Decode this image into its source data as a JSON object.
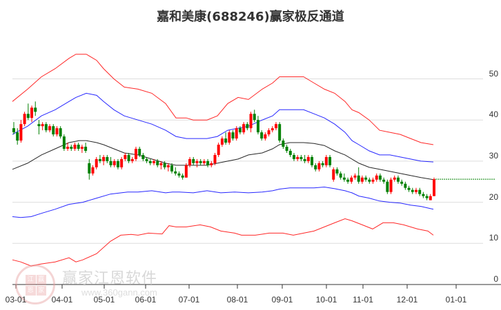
{
  "title": "嘉和美康(688246)赢家极反通道",
  "watermark": {
    "brand": "赢家江恩软件",
    "url": "www.360gann.com",
    "logo_chars": [
      "江",
      "赢",
      "恩",
      "家"
    ]
  },
  "colors": {
    "up": "#ff0000",
    "down": "#008000",
    "outer_band": "#ff0000",
    "inner_band": "#0000ff",
    "middle_line": "#000000",
    "last_price_line": "#008000",
    "grid": "#dddddd"
  },
  "y_axis": {
    "ticks": [
      "0",
      "10",
      "20",
      "30",
      "40",
      "50"
    ],
    "values": [
      0,
      10,
      20,
      30,
      40,
      50
    ]
  },
  "x_axis": {
    "ticks": [
      "03-01",
      "04-01",
      "05-01",
      "06-01",
      "07-01",
      "08-01",
      "09-01",
      "10-01",
      "11-01",
      "12-01",
      "01-01"
    ],
    "positions": [
      23,
      90,
      151,
      211,
      274,
      344,
      409,
      473,
      526,
      590,
      661
    ]
  },
  "chart_data": {
    "type": "candlestick",
    "title": "嘉和美康(688246)赢家极反通道",
    "xlabel": "",
    "ylabel": "",
    "ylim": [
      0,
      55
    ],
    "grid": true,
    "legend": null,
    "x_tick_labels": [
      "03-01",
      "04-01",
      "05-01",
      "06-01",
      "07-01",
      "08-01",
      "09-01",
      "10-01",
      "11-01",
      "12-01",
      "01-01"
    ],
    "y_tick_labels": [
      "0",
      "10",
      "20",
      "30",
      "40",
      "50"
    ],
    "last_price": 25.6,
    "candles_x_range": [
      20,
      629
    ],
    "candles": [
      [
        38.0,
        39.5,
        36.5,
        37.0
      ],
      [
        37.0,
        38.0,
        34.0,
        35.0
      ],
      [
        35.0,
        40.0,
        34.5,
        39.0
      ],
      [
        39.0,
        42.0,
        38.5,
        41.5
      ],
      [
        41.5,
        44.0,
        40.0,
        40.5
      ],
      [
        40.5,
        43.5,
        39.5,
        43.0
      ],
      [
        43.0,
        44.5,
        41.0,
        42.0
      ],
      [
        39.0,
        40.0,
        36.5,
        38.5
      ],
      [
        38.5,
        39.5,
        37.5,
        39.0
      ],
      [
        39.0,
        39.5,
        37.0,
        37.5
      ],
      [
        37.5,
        39.0,
        37.0,
        38.5
      ],
      [
        38.5,
        39.0,
        36.0,
        36.5
      ],
      [
        36.5,
        38.5,
        36.0,
        38.0
      ],
      [
        38.0,
        38.5,
        35.5,
        36.0
      ],
      [
        36.0,
        36.5,
        32.5,
        33.0
      ],
      [
        33.0,
        34.5,
        32.5,
        33.5
      ],
      [
        33.5,
        34.0,
        32.5,
        33.0
      ],
      [
        33.0,
        34.5,
        32.5,
        34.0
      ],
      [
        34.0,
        34.5,
        32.5,
        33.0
      ],
      [
        33.0,
        34.0,
        32.0,
        33.5
      ],
      [
        33.5,
        34.5,
        32.0,
        32.5
      ],
      [
        29.5,
        30.5,
        25.5,
        27.0
      ],
      [
        27.0,
        29.0,
        26.5,
        28.5
      ],
      [
        28.5,
        31.0,
        28.0,
        30.5
      ],
      [
        30.5,
        31.5,
        29.5,
        30.0
      ],
      [
        30.0,
        31.5,
        29.0,
        31.0
      ],
      [
        31.0,
        31.5,
        29.5,
        30.0
      ],
      [
        30.0,
        31.0,
        28.5,
        29.0
      ],
      [
        29.0,
        30.5,
        28.5,
        30.0
      ],
      [
        30.0,
        30.5,
        28.0,
        28.5
      ],
      [
        28.5,
        31.0,
        28.0,
        30.5
      ],
      [
        30.5,
        32.0,
        30.0,
        31.5
      ],
      [
        31.5,
        32.0,
        29.5,
        30.0
      ],
      [
        30.0,
        31.0,
        29.5,
        30.5
      ],
      [
        30.5,
        33.5,
        30.0,
        33.0
      ],
      [
        33.0,
        33.5,
        31.0,
        31.5
      ],
      [
        31.5,
        32.0,
        30.0,
        30.5
      ],
      [
        30.5,
        31.0,
        29.5,
        30.0
      ],
      [
        30.0,
        30.5,
        29.0,
        29.5
      ],
      [
        29.5,
        30.5,
        29.0,
        30.0
      ],
      [
        30.0,
        30.5,
        28.5,
        29.0
      ],
      [
        29.0,
        30.0,
        28.0,
        29.5
      ],
      [
        29.5,
        30.0,
        28.0,
        28.5
      ],
      [
        28.5,
        29.5,
        27.5,
        29.0
      ],
      [
        29.0,
        29.5,
        27.0,
        27.5
      ],
      [
        27.5,
        28.5,
        26.5,
        27.0
      ],
      [
        27.0,
        27.5,
        26.0,
        26.5
      ],
      [
        26.5,
        27.0,
        25.5,
        26.0
      ],
      [
        26.0,
        29.5,
        26.0,
        29.0
      ],
      [
        29.0,
        31.0,
        28.5,
        30.5
      ],
      [
        30.5,
        31.0,
        29.0,
        29.5
      ],
      [
        29.5,
        30.5,
        28.5,
        30.0
      ],
      [
        30.0,
        30.5,
        29.0,
        29.5
      ],
      [
        29.5,
        30.5,
        29.0,
        30.0
      ],
      [
        30.0,
        30.5,
        28.5,
        29.0
      ],
      [
        29.0,
        30.0,
        28.5,
        29.5
      ],
      [
        29.5,
        32.0,
        29.0,
        31.5
      ],
      [
        31.5,
        34.5,
        31.0,
        34.0
      ],
      [
        34.0,
        36.0,
        33.5,
        35.5
      ],
      [
        35.5,
        37.0,
        34.0,
        34.5
      ],
      [
        34.5,
        37.5,
        34.0,
        37.0
      ],
      [
        37.0,
        37.5,
        35.0,
        35.5
      ],
      [
        35.5,
        38.5,
        35.0,
        38.0
      ],
      [
        38.0,
        38.5,
        36.5,
        37.0
      ],
      [
        37.0,
        39.5,
        36.5,
        39.0
      ],
      [
        39.0,
        39.5,
        37.5,
        38.0
      ],
      [
        38.0,
        42.0,
        37.0,
        41.5
      ],
      [
        41.5,
        42.5,
        39.5,
        40.0
      ],
      [
        40.0,
        41.0,
        36.5,
        37.0
      ],
      [
        37.0,
        37.5,
        35.0,
        35.5
      ],
      [
        35.5,
        37.0,
        35.0,
        36.5
      ],
      [
        36.5,
        38.0,
        36.0,
        37.5
      ],
      [
        37.5,
        38.5,
        37.0,
        38.0
      ],
      [
        38.0,
        39.5,
        37.5,
        39.0
      ],
      [
        39.0,
        39.5,
        34.5,
        35.0
      ],
      [
        35.0,
        35.5,
        33.0,
        33.5
      ],
      [
        33.5,
        34.0,
        32.0,
        32.5
      ],
      [
        32.5,
        33.0,
        31.0,
        31.5
      ],
      [
        31.5,
        32.0,
        30.0,
        30.5
      ],
      [
        30.5,
        31.5,
        30.0,
        31.0
      ],
      [
        31.0,
        31.5,
        30.0,
        30.5
      ],
      [
        30.5,
        31.5,
        29.5,
        30.0
      ],
      [
        30.0,
        31.5,
        29.5,
        31.0
      ],
      [
        31.0,
        31.5,
        28.5,
        29.0
      ],
      [
        29.0,
        29.5,
        27.5,
        28.0
      ],
      [
        28.0,
        30.0,
        27.5,
        29.5
      ],
      [
        29.5,
        30.0,
        28.5,
        29.0
      ],
      [
        29.0,
        31.5,
        28.5,
        31.0
      ],
      [
        31.0,
        31.5,
        28.5,
        29.0
      ],
      [
        25.5,
        28.5,
        25.0,
        28.0
      ],
      [
        28.0,
        28.5,
        26.5,
        27.0
      ],
      [
        27.0,
        27.5,
        25.5,
        26.0
      ],
      [
        26.0,
        27.0,
        25.0,
        25.5
      ],
      [
        25.5,
        26.0,
        24.5,
        25.0
      ],
      [
        25.0,
        26.5,
        24.5,
        26.0
      ],
      [
        26.0,
        27.0,
        25.5,
        26.5
      ],
      [
        26.5,
        28.5,
        24.5,
        25.0
      ],
      [
        25.0,
        26.5,
        24.5,
        26.0
      ],
      [
        26.0,
        26.5,
        25.0,
        25.5
      ],
      [
        25.5,
        26.0,
        24.5,
        25.0
      ],
      [
        25.0,
        26.0,
        24.5,
        25.5
      ],
      [
        25.5,
        27.0,
        25.0,
        26.5
      ],
      [
        26.5,
        27.0,
        25.0,
        25.5
      ],
      [
        25.5,
        26.0,
        24.5,
        25.0
      ],
      [
        25.0,
        25.5,
        22.0,
        22.5
      ],
      [
        22.5,
        26.0,
        22.0,
        25.5
      ],
      [
        25.5,
        26.5,
        25.0,
        26.0
      ],
      [
        26.0,
        26.5,
        24.5,
        25.0
      ],
      [
        25.0,
        25.5,
        24.0,
        24.5
      ],
      [
        24.5,
        25.0,
        23.0,
        23.5
      ],
      [
        23.5,
        24.0,
        22.5,
        23.0
      ],
      [
        23.0,
        23.5,
        22.0,
        22.5
      ],
      [
        22.5,
        23.5,
        22.0,
        23.0
      ],
      [
        23.0,
        23.5,
        21.5,
        22.0
      ],
      [
        22.0,
        22.5,
        21.0,
        21.5
      ],
      [
        21.5,
        22.0,
        20.5,
        21.0
      ],
      [
        20.5,
        22.0,
        20.5,
        21.5
      ],
      [
        21.5,
        26.0,
        21.5,
        25.6
      ]
    ],
    "series": [
      {
        "name": "upper_outer",
        "color": "#ff0000",
        "x": [
          18,
          40,
          60,
          80,
          100,
          110,
          125,
          140,
          150,
          165,
          180,
          200,
          220,
          240,
          255,
          270,
          280,
          300,
          315,
          330,
          345,
          360,
          380,
          395,
          405,
          420,
          440,
          455,
          470,
          485,
          500,
          510,
          520,
          535,
          550,
          565,
          580,
          595,
          610,
          628
        ],
        "values": [
          44.5,
          47.5,
          50.5,
          52.5,
          55,
          56,
          56,
          54.5,
          52.5,
          50,
          48,
          47.5,
          46.5,
          44,
          40.5,
          40.5,
          40,
          40,
          41,
          44,
          45.5,
          45,
          47.5,
          49,
          50.5,
          50.5,
          50.5,
          49,
          47.5,
          46.5,
          44.5,
          42.5,
          41.8,
          40,
          37.5,
          37,
          36.5,
          35.5,
          34.5,
          34
        ]
      },
      {
        "name": "upper_inner",
        "color": "#0000ff",
        "x": [
          18,
          40,
          60,
          80,
          100,
          110,
          125,
          140,
          150,
          165,
          180,
          200,
          220,
          240,
          255,
          270,
          280,
          300,
          315,
          330,
          345,
          360,
          380,
          395,
          405,
          420,
          440,
          455,
          470,
          485,
          500,
          510,
          520,
          535,
          550,
          565,
          580,
          595,
          610,
          628
        ],
        "values": [
          36.5,
          38.5,
          41,
          42.5,
          44.5,
          45.5,
          46.5,
          46,
          44.5,
          42.5,
          41,
          40,
          39,
          37.5,
          36,
          35.5,
          35.5,
          35.5,
          36,
          37.5,
          38,
          38.5,
          40,
          41,
          42.5,
          42.5,
          42.5,
          41.5,
          40.5,
          39,
          37,
          35,
          34,
          32.5,
          31.5,
          31.5,
          31,
          30.5,
          30,
          29.8
        ]
      },
      {
        "name": "middle",
        "color": "#000000",
        "x": [
          18,
          40,
          60,
          80,
          100,
          115,
          125,
          140,
          150,
          165,
          180,
          200,
          220,
          240,
          255,
          270,
          280,
          300,
          315,
          330,
          345,
          360,
          380,
          395,
          405,
          420,
          440,
          455,
          470,
          485,
          500,
          510,
          520,
          535,
          550,
          565,
          580,
          595,
          610,
          628
        ],
        "values": [
          28,
          29.5,
          31.5,
          33,
          34.5,
          35,
          35,
          34.5,
          34,
          33,
          32,
          31.5,
          30.5,
          29.5,
          29,
          29,
          29,
          29,
          29.5,
          30,
          30.5,
          31.5,
          32,
          33,
          34,
          34.5,
          34.5,
          34.3,
          33.8,
          32.5,
          31.5,
          30.5,
          29.5,
          28.5,
          28,
          27.5,
          27,
          26.5,
          26,
          25.5
        ]
      },
      {
        "name": "lower_inner",
        "color": "#0000ff",
        "x": [
          18,
          30,
          45,
          60,
          80,
          100,
          120,
          140,
          160,
          185,
          200,
          220,
          240,
          250,
          260,
          280,
          300,
          320,
          340,
          360,
          380,
          395,
          405,
          420,
          440,
          455,
          470,
          485,
          500,
          510,
          520,
          535,
          550,
          565,
          580,
          595,
          610,
          628
        ],
        "values": [
          16.5,
          16.3,
          16.5,
          17.3,
          18.3,
          19.5,
          20,
          21,
          22,
          22.5,
          22.5,
          22.8,
          22.3,
          22.5,
          22.5,
          22.3,
          22.8,
          22.3,
          22.5,
          22.3,
          22.5,
          22.8,
          23.2,
          23.5,
          23.5,
          23.5,
          23.7,
          23.3,
          22.8,
          22.3,
          21.5,
          21,
          20.3,
          20,
          19.8,
          19.3,
          19,
          18.3
        ]
      },
      {
        "name": "lower_outer",
        "color": "#ff0000",
        "x": [
          18,
          30,
          45,
          60,
          80,
          100,
          110,
          120,
          140,
          160,
          175,
          190,
          200,
          215,
          235,
          245,
          255,
          270,
          290,
          305,
          320,
          340,
          350,
          370,
          390,
          410,
          425,
          440,
          455,
          470,
          485,
          500,
          510,
          525,
          540,
          555,
          570,
          585,
          605,
          620,
          628
        ],
        "values": [
          6,
          5.5,
          4.5,
          5,
          5.5,
          6.5,
          5.5,
          6,
          7.5,
          10.5,
          12,
          12.2,
          12,
          12.5,
          12.3,
          14.3,
          14,
          14,
          14.5,
          14,
          13,
          12.5,
          12,
          12,
          12.5,
          12.5,
          12,
          12.5,
          13,
          14,
          15,
          16,
          15.5,
          14.5,
          13.5,
          15,
          15,
          14.5,
          13.5,
          13,
          12
        ]
      }
    ]
  }
}
